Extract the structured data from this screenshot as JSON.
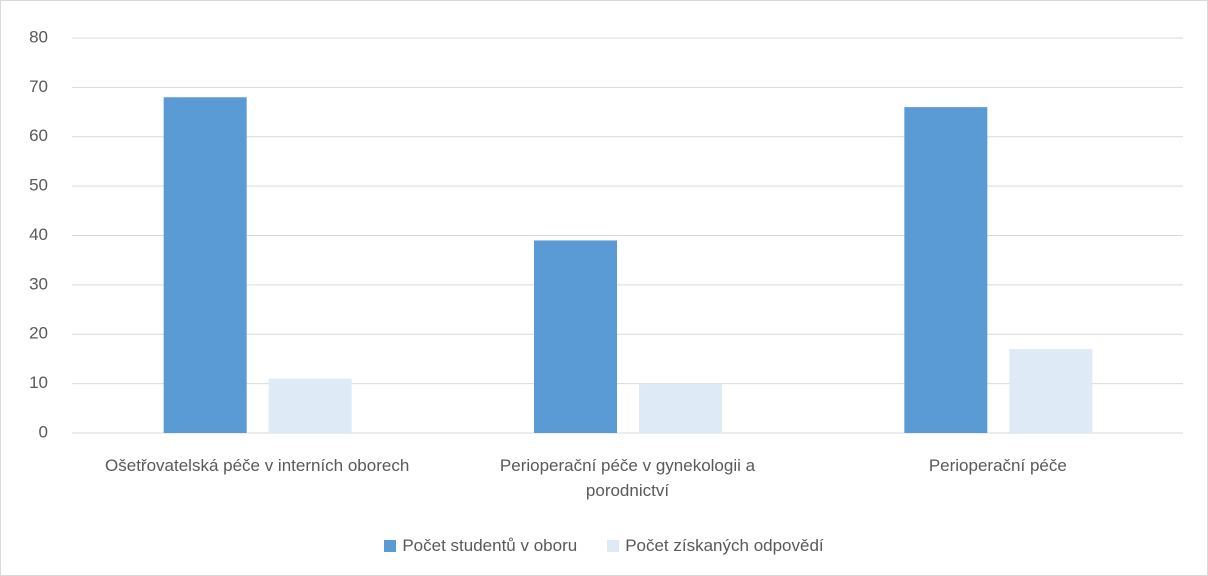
{
  "chart_data": {
    "type": "bar",
    "categories": [
      "Ošetřovatelská péče v interních oborech",
      "Perioperační péče v gynekologii a porodnictví",
      "Perioperační péče"
    ],
    "series": [
      {
        "name": "Počet studentů v oboru",
        "color": "#5b9bd5",
        "values": [
          68,
          39,
          66
        ]
      },
      {
        "name": "Počet získaných odpovědí",
        "color": "#deebf7",
        "values": [
          11,
          10,
          17
        ]
      }
    ],
    "ylim": [
      0,
      80
    ],
    "yticks": [
      0,
      10,
      20,
      30,
      40,
      50,
      60,
      70,
      80
    ],
    "grid": true,
    "legend": "bottom"
  }
}
